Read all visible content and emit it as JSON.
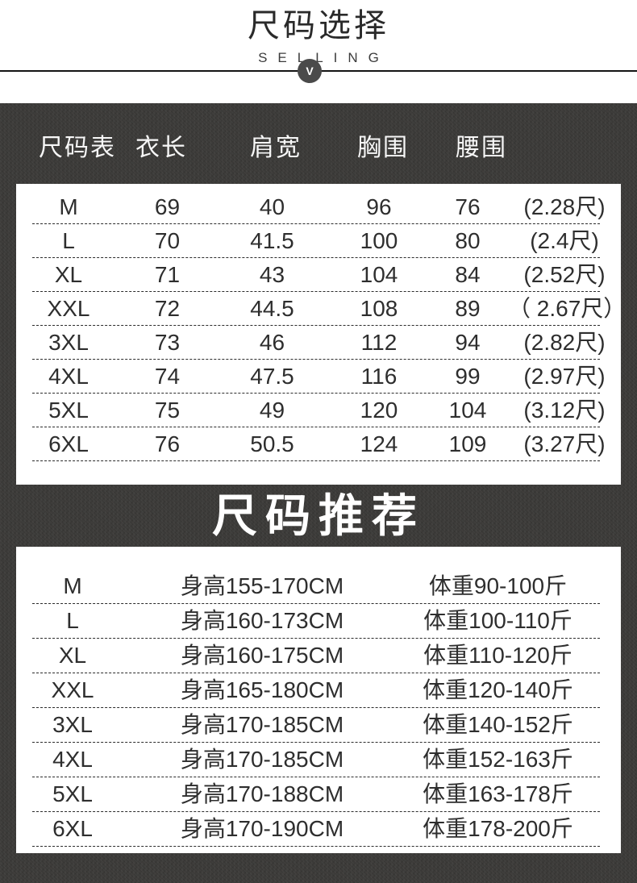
{
  "colors": {
    "dark_bg": "#3b3a38",
    "card_bg": "#ffffff",
    "text_dark": "#2e2e2e",
    "text_light": "#ffffff",
    "badge_bg": "#4a4a4a"
  },
  "header": {
    "title": "尺码选择",
    "subtitle": "SELLING",
    "badge": "V"
  },
  "size_table": {
    "columns": [
      "尺码表",
      "衣长",
      "肩宽",
      "胸围",
      "腰围"
    ],
    "rows": [
      {
        "size": "M",
        "length": "69",
        "shoulder": "40",
        "chest": "96",
        "waist": "76",
        "chi": "(2.28尺)"
      },
      {
        "size": "L",
        "length": "70",
        "shoulder": "41.5",
        "chest": "100",
        "waist": "80",
        "chi": "(2.4尺)"
      },
      {
        "size": "XL",
        "length": "71",
        "shoulder": "43",
        "chest": "104",
        "waist": "84",
        "chi": "(2.52尺)"
      },
      {
        "size": "XXL",
        "length": "72",
        "shoulder": "44.5",
        "chest": "108",
        "waist": "89",
        "chi": "（ 2.67尺）"
      },
      {
        "size": "3XL",
        "length": "73",
        "shoulder": "46",
        "chest": "112",
        "waist": "94",
        "chi": "(2.82尺)"
      },
      {
        "size": "4XL",
        "length": "74",
        "shoulder": "47.5",
        "chest": "116",
        "waist": "99",
        "chi": "(2.97尺)"
      },
      {
        "size": "5XL",
        "length": "75",
        "shoulder": "49",
        "chest": "120",
        "waist": "104",
        "chi": "(3.12尺)"
      },
      {
        "size": "6XL",
        "length": "76",
        "shoulder": "50.5",
        "chest": "124",
        "waist": "109",
        "chi": "(3.27尺)"
      }
    ]
  },
  "recommend": {
    "title": "尺码推荐",
    "rows": [
      {
        "size": "M",
        "height": "身高155-170CM",
        "weight": "体重90-100斤"
      },
      {
        "size": "L",
        "height": "身高160-173CM",
        "weight": "体重100-110斤"
      },
      {
        "size": "XL",
        "height": "身高160-175CM",
        "weight": "体重110-120斤"
      },
      {
        "size": "XXL",
        "height": "身高165-180CM",
        "weight": "体重120-140斤"
      },
      {
        "size": "3XL",
        "height": "身高170-185CM",
        "weight": "体重140-152斤"
      },
      {
        "size": "4XL",
        "height": "身高170-185CM",
        "weight": "体重152-163斤"
      },
      {
        "size": "5XL",
        "height": "身高170-188CM",
        "weight": "体重163-178斤"
      },
      {
        "size": "6XL",
        "height": "身高170-190CM",
        "weight": "体重178-200斤"
      }
    ]
  }
}
